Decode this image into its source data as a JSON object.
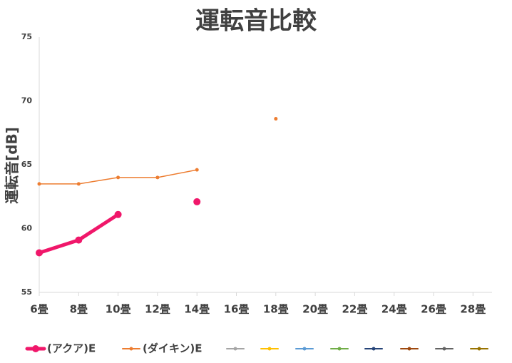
{
  "chart_data": {
    "type": "line",
    "title": "運転音比較",
    "y_label": "運転音[dB]",
    "categories": [
      "6畳",
      "8畳",
      "10畳",
      "12畳",
      "14畳",
      "16畳",
      "18畳",
      "20畳",
      "22畳",
      "24畳",
      "26畳",
      "28畳"
    ],
    "series": [
      {
        "name": "(アクア)E",
        "color": "#f0176a",
        "values": [
          58.1,
          59.1,
          61.1,
          null,
          62.1,
          null,
          null,
          null,
          null,
          null,
          null,
          null
        ]
      },
      {
        "name": "(ダイキン)E",
        "color": "#ed7d31",
        "values": [
          63.5,
          63.5,
          64.0,
          64.0,
          64.6,
          null,
          68.6,
          null,
          null,
          null,
          null,
          null
        ]
      },
      {
        "color": "#a5a5a5",
        "values": [
          null,
          null,
          null,
          null,
          null,
          null,
          null,
          null,
          null,
          null,
          null,
          null
        ]
      },
      {
        "color": "#ffc000",
        "values": [
          null,
          null,
          null,
          null,
          null,
          null,
          null,
          null,
          null,
          null,
          null,
          null
        ]
      },
      {
        "color": "#5b9bd5",
        "values": [
          null,
          null,
          null,
          null,
          null,
          null,
          null,
          null,
          null,
          null,
          null,
          null
        ]
      },
      {
        "color": "#70ad47",
        "values": [
          null,
          null,
          null,
          null,
          null,
          null,
          null,
          null,
          null,
          null,
          null,
          null
        ]
      },
      {
        "color": "#264478",
        "values": [
          null,
          null,
          null,
          null,
          null,
          null,
          null,
          null,
          null,
          null,
          null,
          null
        ]
      },
      {
        "color": "#9e480e",
        "values": [
          null,
          null,
          null,
          null,
          null,
          null,
          null,
          null,
          null,
          null,
          null,
          null
        ]
      },
      {
        "color": "#636363",
        "values": [
          null,
          null,
          null,
          null,
          null,
          null,
          null,
          null,
          null,
          null,
          null,
          null
        ]
      },
      {
        "color": "#997300",
        "values": [
          null,
          null,
          null,
          null,
          null,
          null,
          null,
          null,
          null,
          null,
          null,
          null
        ]
      }
    ],
    "ylim": [
      55,
      75
    ],
    "yticks": [
      55,
      60,
      65,
      70,
      75
    ],
    "grid": false,
    "legend": "bottom"
  }
}
